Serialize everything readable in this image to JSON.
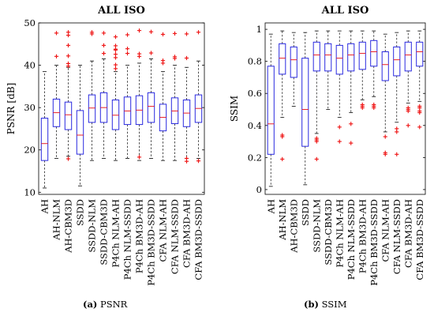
{
  "categories": [
    "AH",
    "AH-NLM",
    "AH-CBM3D",
    "SSDD",
    "SSDD-NLM",
    "SSDD-CBM3D",
    "P4Ch NLM-AH",
    "P4Ch NLM-SSDD",
    "P4Ch BM3D-AH",
    "P4Ch BM3D-SSDD",
    "CFA NLM-AH",
    "CFA NLM-SSDD",
    "CFA BM3D-AH",
    "CFA BM3D-SSDD"
  ],
  "colors": {
    "box": "#2a2ae0",
    "median": "#e8202a",
    "outlier": "#ee1010",
    "whisker": "#222222"
  },
  "chart_data": [
    {
      "type": "boxplot",
      "title": "ALL ISO",
      "xlabel": "",
      "ylabel": "PSNR [dB]",
      "ylim": [
        9.5,
        50
      ],
      "yticks": [
        10,
        20,
        30,
        40,
        50
      ],
      "caption_letter": "(a)",
      "caption_text": "PSNR",
      "boxes": [
        {
          "low": 11,
          "q1": 17.5,
          "median": 21.5,
          "q3": 27.5,
          "high": 38.5,
          "outliers": []
        },
        {
          "low": 18,
          "q1": 25.5,
          "median": 28.8,
          "q3": 32,
          "high": 40,
          "outliers": [
            42.1,
            47.6
          ]
        },
        {
          "low": 18.5,
          "q1": 24.8,
          "median": 28.3,
          "q3": 31.3,
          "high": 39.5,
          "outliers": [
            17.9,
            39.8,
            40.4,
            42.2,
            44.7,
            47.1,
            47.8
          ]
        },
        {
          "low": 11.5,
          "q1": 19,
          "median": 23.5,
          "q3": 29.3,
          "high": 40,
          "outliers": []
        },
        {
          "low": 17.5,
          "q1": 26.5,
          "median": 29.9,
          "q3": 33,
          "high": 41,
          "outliers": [
            47.4,
            47.8
          ]
        },
        {
          "low": 18,
          "q1": 26.5,
          "median": 30,
          "q3": 33.5,
          "high": 41.5,
          "outliers": [
            42.8,
            44.7,
            47.6
          ]
        },
        {
          "low": 17.5,
          "q1": 24.8,
          "median": 28.2,
          "q3": 31.8,
          "high": 38.5,
          "outliers": [
            39.2,
            40.1,
            41.8,
            42.6,
            43.6,
            43.8,
            44.6,
            46.7
          ]
        },
        {
          "low": 18,
          "q1": 26,
          "median": 29.2,
          "q3": 32.5,
          "high": 40,
          "outliers": [
            42.8,
            43.9,
            47.2
          ]
        },
        {
          "low": 17.5,
          "q1": 26,
          "median": 29.4,
          "q3": 32.8,
          "high": 40.5,
          "outliers": [
            18.3,
            42.1,
            42.7,
            48.2
          ]
        },
        {
          "low": 18,
          "q1": 26.5,
          "median": 30.3,
          "q3": 33.5,
          "high": 41.5,
          "outliers": [
            42.9,
            47.9
          ]
        },
        {
          "low": 17.5,
          "q1": 24.5,
          "median": 27.7,
          "q3": 30.8,
          "high": 38.5,
          "outliers": [
            40.5,
            41.1,
            47.3
          ]
        },
        {
          "low": 17.5,
          "q1": 26.2,
          "median": 29.2,
          "q3": 32.3,
          "high": 40,
          "outliers": [
            41.6,
            42,
            47.5
          ]
        },
        {
          "low": 18,
          "q1": 25.5,
          "median": 28.7,
          "q3": 31.8,
          "high": 39.5,
          "outliers": [
            17.3,
            18,
            41.7,
            47.4
          ]
        },
        {
          "low": 18,
          "q1": 26.5,
          "median": 29.8,
          "q3": 33,
          "high": 41,
          "outliers": [
            17.4,
            47.8
          ]
        }
      ]
    },
    {
      "type": "boxplot",
      "title": "ALL ISO",
      "xlabel": "",
      "ylabel": "SSIM",
      "ylim": [
        -0.03,
        1.04
      ],
      "yticks": [
        0,
        0.2,
        0.4,
        0.6,
        0.8,
        1
      ],
      "caption_letter": "(b)",
      "caption_text": "SSIM",
      "boxes": [
        {
          "low": 0.02,
          "q1": 0.22,
          "median": 0.41,
          "q3": 0.77,
          "high": 0.97,
          "outliers": []
        },
        {
          "low": 0.45,
          "q1": 0.72,
          "median": 0.82,
          "q3": 0.91,
          "high": 0.99,
          "outliers": [
            0.19,
            0.33,
            0.34
          ]
        },
        {
          "low": 0.52,
          "q1": 0.7,
          "median": 0.81,
          "q3": 0.89,
          "high": 0.98,
          "outliers": []
        },
        {
          "low": 0.03,
          "q1": 0.27,
          "median": 0.5,
          "q3": 0.82,
          "high": 0.98,
          "outliers": []
        },
        {
          "low": 0.35,
          "q1": 0.74,
          "median": 0.84,
          "q3": 0.92,
          "high": 0.99,
          "outliers": [
            0.19,
            0.3,
            0.31,
            0.32
          ]
        },
        {
          "low": 0.5,
          "q1": 0.74,
          "median": 0.84,
          "q3": 0.91,
          "high": 0.99,
          "outliers": []
        },
        {
          "low": 0.45,
          "q1": 0.72,
          "median": 0.82,
          "q3": 0.9,
          "high": 0.99,
          "outliers": [
            0.3,
            0.39
          ]
        },
        {
          "low": 0.48,
          "q1": 0.74,
          "median": 0.84,
          "q3": 0.91,
          "high": 0.99,
          "outliers": [
            0.29,
            0.41
          ]
        },
        {
          "low": 0.56,
          "q1": 0.75,
          "median": 0.85,
          "q3": 0.92,
          "high": 0.99,
          "outliers": [
            0.51,
            0.52,
            0.53
          ]
        },
        {
          "low": 0.58,
          "q1": 0.77,
          "median": 0.86,
          "q3": 0.93,
          "high": 0.99,
          "outliers": [
            0.51,
            0.52,
            0.53
          ]
        },
        {
          "low": 0.36,
          "q1": 0.68,
          "median": 0.78,
          "q3": 0.86,
          "high": 0.97,
          "outliers": [
            0.22,
            0.23,
            0.33
          ]
        },
        {
          "low": 0.42,
          "q1": 0.71,
          "median": 0.81,
          "q3": 0.89,
          "high": 0.98,
          "outliers": [
            0.22,
            0.36,
            0.38
          ]
        },
        {
          "low": 0.54,
          "q1": 0.74,
          "median": 0.84,
          "q3": 0.92,
          "high": 0.99,
          "outliers": [
            0.4,
            0.49,
            0.5,
            0.51
          ]
        },
        {
          "low": 0.55,
          "q1": 0.77,
          "median": 0.86,
          "q3": 0.92,
          "high": 0.99,
          "outliers": [
            0.39,
            0.48,
            0.49,
            0.51,
            0.52
          ]
        }
      ]
    }
  ]
}
